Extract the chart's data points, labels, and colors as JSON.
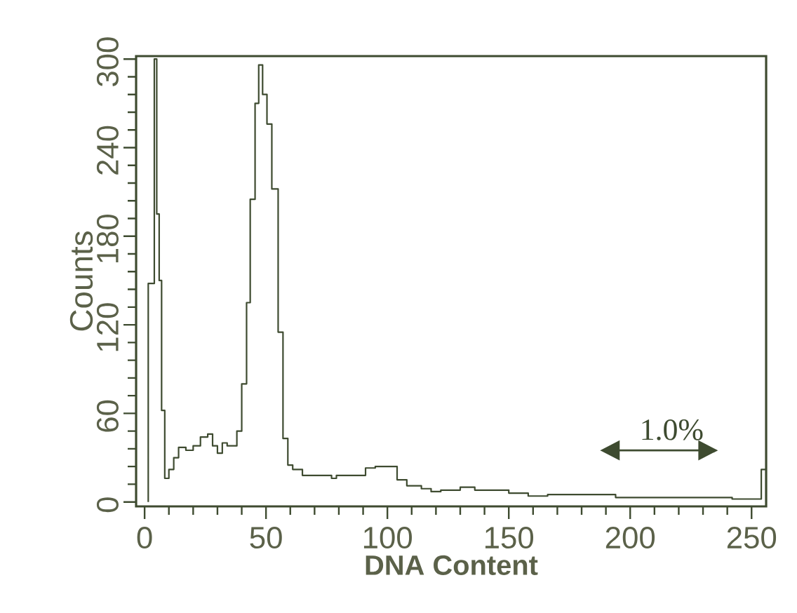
{
  "chart_data": {
    "type": "histogram",
    "xlabel": "DNA Content",
    "ylabel": "Counts",
    "bins": [
      1.5,
      4,
      5,
      6,
      7,
      8.3,
      10,
      12,
      14,
      17,
      20,
      23,
      26,
      28,
      30,
      32,
      34,
      38,
      40,
      42,
      43.5,
      45.5,
      47,
      48.6,
      50.4,
      52.4,
      55,
      57,
      59,
      61,
      65,
      77,
      79,
      91,
      95,
      104,
      108,
      114,
      118,
      122,
      130,
      136,
      150,
      158,
      166,
      194,
      242,
      254,
      256
    ],
    "values": [
      148,
      300,
      195,
      150,
      62,
      16,
      22,
      30,
      37,
      35,
      38,
      44,
      46,
      38,
      33,
      40,
      38,
      48,
      80,
      135,
      205,
      270,
      296,
      276,
      256,
      212,
      115,
      43,
      25,
      22,
      18,
      16,
      18,
      23,
      24,
      15,
      11,
      9,
      7,
      8,
      10,
      8,
      6,
      4,
      5,
      3,
      2,
      22
    ],
    "color": "#3e4b30",
    "xlim": [
      -3.5,
      256
    ],
    "ylim": [
      -3,
      302
    ],
    "xticks": [
      0,
      50,
      100,
      150,
      200,
      250
    ],
    "yticks": [
      0,
      60,
      120,
      180,
      240,
      300
    ],
    "annotations": [
      "1.0%"
    ]
  }
}
